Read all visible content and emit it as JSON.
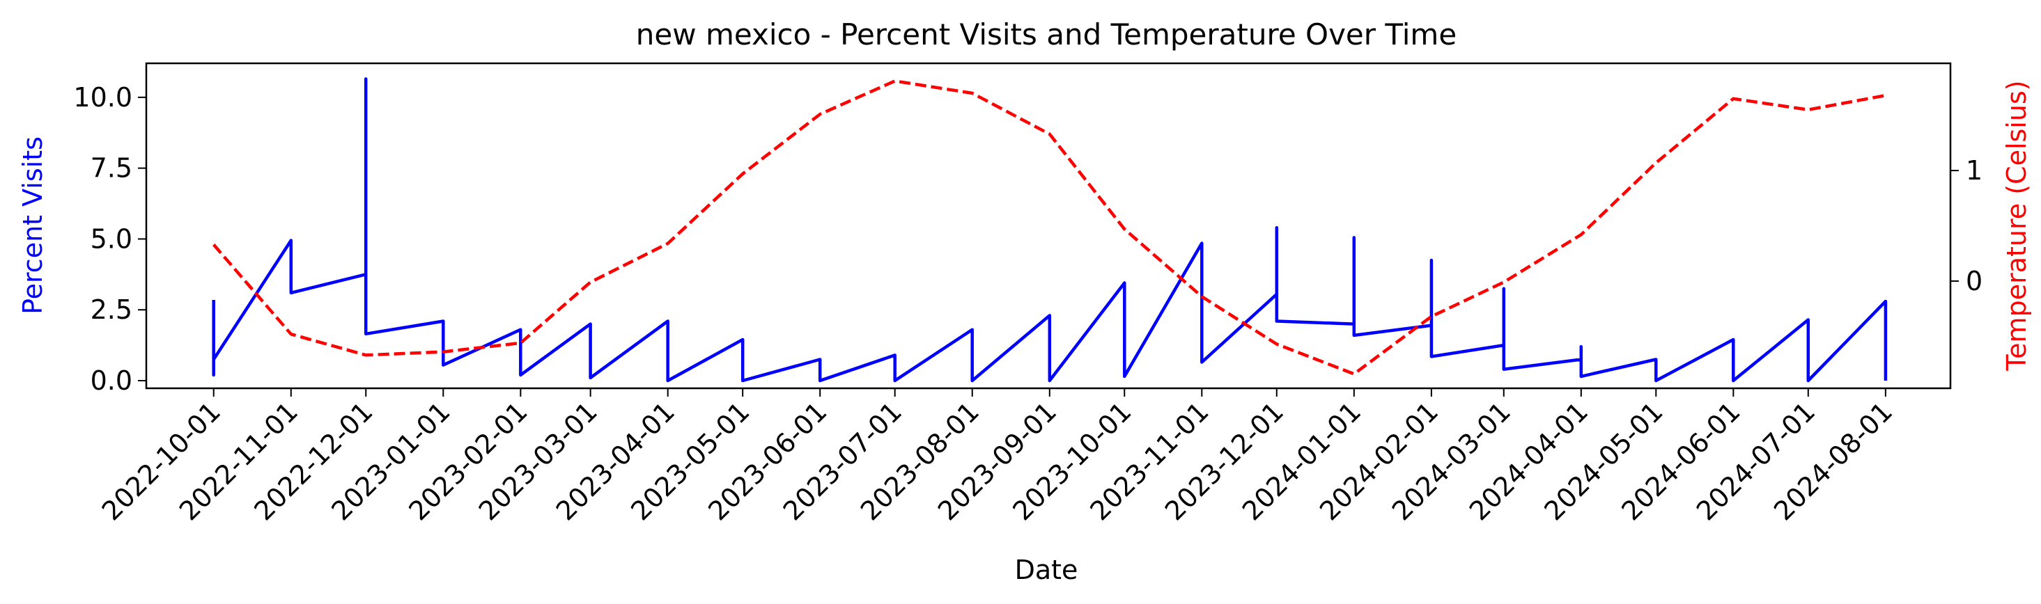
{
  "chart_data": {
    "type": "line",
    "title": "new mexico - Percent Visits and Temperature Over Time",
    "xlabel": "Date",
    "ylabel": "Percent Visits",
    "y2label": "Temperature (Celsius)",
    "x_ticks": [
      "2022-10-01",
      "2022-11-01",
      "2022-12-01",
      "2023-01-01",
      "2023-02-01",
      "2023-03-01",
      "2023-04-01",
      "2023-05-01",
      "2023-06-01",
      "2023-07-01",
      "2023-08-01",
      "2023-09-01",
      "2023-10-01",
      "2023-11-01",
      "2023-12-01",
      "2024-01-01",
      "2024-02-01",
      "2024-03-01",
      "2024-04-01",
      "2024-05-01",
      "2024-06-01",
      "2024-07-01",
      "2024-08-01"
    ],
    "xlim": [
      "2022-09-04",
      "2024-08-27"
    ],
    "ylim": [
      -0.27,
      11.2
    ],
    "y_ticks": [
      0.0,
      2.5,
      5.0,
      7.5,
      10.0
    ],
    "y_tick_labels": [
      "0.0",
      "2.5",
      "5.0",
      "7.5",
      "10.0"
    ],
    "y2lim": [
      -0.97,
      1.97
    ],
    "y2_ticks": [
      0,
      1
    ],
    "y2_tick_labels": [
      "0",
      "1"
    ],
    "grid": false,
    "series": [
      {
        "axis": "left",
        "color": "#0000ff",
        "style": "solid",
        "points": [
          [
            "2022-10-01",
            2.85
          ],
          [
            "2022-10-01",
            0.2
          ],
          [
            "2022-10-01",
            0.75
          ],
          [
            "2022-11-01",
            4.95
          ],
          [
            "2022-11-01",
            3.1
          ],
          [
            "2022-12-01",
            3.75
          ],
          [
            "2022-12-01",
            10.65
          ],
          [
            "2022-12-01",
            1.65
          ],
          [
            "2023-01-01",
            2.1
          ],
          [
            "2023-01-01",
            0.55
          ],
          [
            "2023-02-01",
            1.8
          ],
          [
            "2023-02-01",
            0.2
          ],
          [
            "2023-03-01",
            2.0
          ],
          [
            "2023-03-01",
            0.1
          ],
          [
            "2023-04-01",
            2.1
          ],
          [
            "2023-04-01",
            0.0
          ],
          [
            "2023-05-01",
            1.45
          ],
          [
            "2023-05-01",
            0.0
          ],
          [
            "2023-06-01",
            0.75
          ],
          [
            "2023-06-01",
            0.0
          ],
          [
            "2023-07-01",
            0.9
          ],
          [
            "2023-07-01",
            0.0
          ],
          [
            "2023-08-01",
            1.8
          ],
          [
            "2023-08-01",
            0.0
          ],
          [
            "2023-09-01",
            2.3
          ],
          [
            "2023-09-01",
            0.0
          ],
          [
            "2023-10-01",
            3.45
          ],
          [
            "2023-10-01",
            0.15
          ],
          [
            "2023-11-01",
            4.85
          ],
          [
            "2023-11-01",
            0.65
          ],
          [
            "2023-12-01",
            3.05
          ],
          [
            "2023-12-01",
            5.4
          ],
          [
            "2023-12-01",
            2.1
          ],
          [
            "2024-01-01",
            2.0
          ],
          [
            "2024-01-01",
            5.05
          ],
          [
            "2024-01-01",
            1.6
          ],
          [
            "2024-02-01",
            1.95
          ],
          [
            "2024-02-01",
            4.25
          ],
          [
            "2024-02-01",
            0.85
          ],
          [
            "2024-03-01",
            1.25
          ],
          [
            "2024-03-01",
            3.25
          ],
          [
            "2024-03-01",
            0.4
          ],
          [
            "2024-04-01",
            0.75
          ],
          [
            "2024-04-01",
            1.2
          ],
          [
            "2024-04-01",
            0.15
          ],
          [
            "2024-05-01",
            0.75
          ],
          [
            "2024-05-01",
            0.0
          ],
          [
            "2024-06-01",
            1.45
          ],
          [
            "2024-06-01",
            0.0
          ],
          [
            "2024-07-01",
            2.15
          ],
          [
            "2024-07-01",
            0.0
          ],
          [
            "2024-08-01",
            2.8
          ],
          [
            "2024-08-01",
            0.0
          ]
        ]
      },
      {
        "axis": "right",
        "color": "#ff0000",
        "style": "dashed",
        "points": [
          [
            "2022-10-01",
            0.33
          ],
          [
            "2022-11-01",
            -0.48
          ],
          [
            "2022-12-01",
            -0.67
          ],
          [
            "2023-01-01",
            -0.64
          ],
          [
            "2023-02-01",
            -0.56
          ],
          [
            "2023-03-01",
            -0.01
          ],
          [
            "2023-04-01",
            0.34
          ],
          [
            "2023-05-01",
            0.97
          ],
          [
            "2023-06-01",
            1.51
          ],
          [
            "2023-07-01",
            1.81
          ],
          [
            "2023-08-01",
            1.7
          ],
          [
            "2023-09-01",
            1.33
          ],
          [
            "2023-10-01",
            0.47
          ],
          [
            "2023-11-01",
            -0.14
          ],
          [
            "2023-12-01",
            -0.57
          ],
          [
            "2024-01-01",
            -0.84
          ],
          [
            "2024-02-01",
            -0.32
          ],
          [
            "2024-03-01",
            -0.01
          ],
          [
            "2024-04-01",
            0.42
          ],
          [
            "2024-05-01",
            1.07
          ],
          [
            "2024-06-01",
            1.65
          ],
          [
            "2024-07-01",
            1.55
          ],
          [
            "2024-08-01",
            1.68
          ]
        ]
      }
    ]
  }
}
